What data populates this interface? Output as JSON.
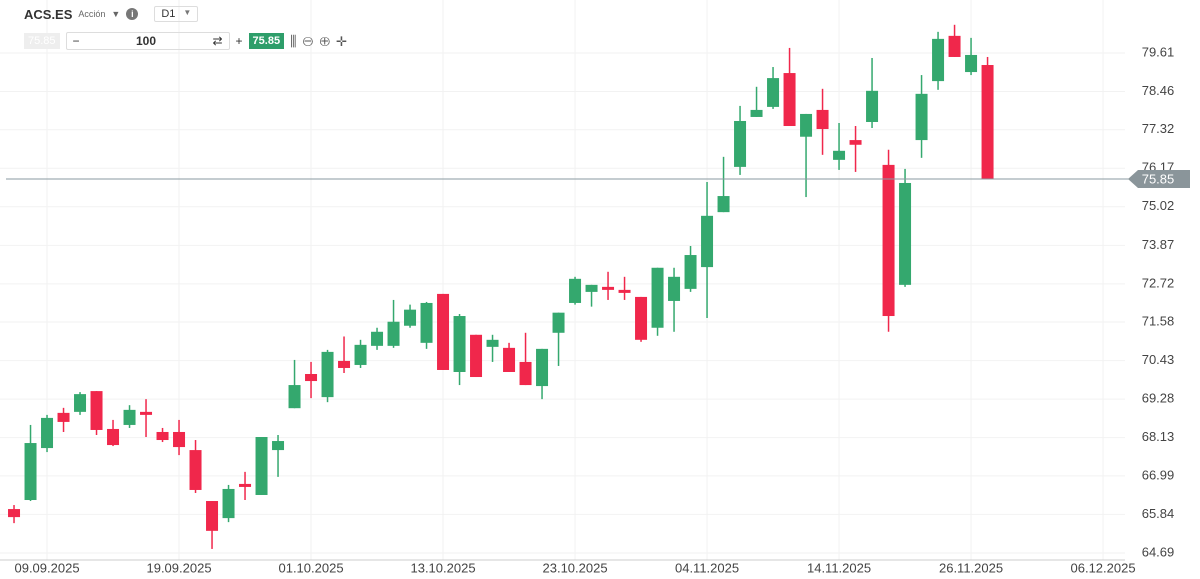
{
  "toolbar": {
    "symbol": "ACS.ES",
    "asset_type": "Acción",
    "timeframe": "D1",
    "quantity": "100"
  },
  "chart_data": {
    "type": "candlestick",
    "up_color": "#34a86e",
    "down_color": "#f0274b",
    "open": [
      66.0,
      66.27,
      67.82,
      68.87,
      68.9,
      69.52,
      68.39,
      68.51,
      68.9,
      68.3,
      68.3,
      67.76,
      66.24,
      65.73,
      66.75,
      66.42,
      67.76,
      69.01,
      70.03,
      69.34,
      70.42,
      70.3,
      70.87,
      70.87,
      71.47,
      70.96,
      72.42,
      70.09,
      71.2,
      70.84,
      70.81,
      70.39,
      69.67,
      71.26,
      72.15,
      72.48,
      72.63,
      72.54,
      72.33,
      71.41,
      72.21,
      72.57,
      73.22,
      74.86,
      76.21,
      77.7,
      78.0,
      79.01,
      77.11,
      77.91,
      76.42,
      77.01,
      77.55,
      76.27,
      72.69,
      77.01,
      78.77,
      80.12,
      79.04,
      79.25
    ],
    "high": [
      66.12,
      68.51,
      68.81,
      69.02,
      69.49,
      69.52,
      68.66,
      69.1,
      69.28,
      68.42,
      68.66,
      68.06,
      66.24,
      66.72,
      67.11,
      68.15,
      68.21,
      70.45,
      70.39,
      70.75,
      71.15,
      71.05,
      71.41,
      72.24,
      72.1,
      72.18,
      72.42,
      71.82,
      71.2,
      71.2,
      70.96,
      71.26,
      70.78,
      71.86,
      72.93,
      72.69,
      73.08,
      72.93,
      72.33,
      73.2,
      73.2,
      73.85,
      75.76,
      76.51,
      78.03,
      78.6,
      79.19,
      79.76,
      77.79,
      78.54,
      77.52,
      77.43,
      79.46,
      76.72,
      76.15,
      78.95,
      80.24,
      80.45,
      80.06,
      79.49
    ],
    "low": [
      65.58,
      66.24,
      67.7,
      68.3,
      68.81,
      68.21,
      67.88,
      68.42,
      68.15,
      68.0,
      67.61,
      66.48,
      64.81,
      65.61,
      66.27,
      66.42,
      66.96,
      69.01,
      69.31,
      69.19,
      70.06,
      70.21,
      70.75,
      70.81,
      71.41,
      70.78,
      70.15,
      69.7,
      69.94,
      70.39,
      70.09,
      69.7,
      69.28,
      70.27,
      72.1,
      72.04,
      72.24,
      72.24,
      70.99,
      71.17,
      71.29,
      72.48,
      71.7,
      74.86,
      75.97,
      77.7,
      77.94,
      77.43,
      75.31,
      76.57,
      76.12,
      76.06,
      77.37,
      71.29,
      72.63,
      76.48,
      78.51,
      79.49,
      78.95,
      75.85
    ],
    "close": [
      65.76,
      67.97,
      68.72,
      68.6,
      69.43,
      68.36,
      67.91,
      68.96,
      68.81,
      68.06,
      67.85,
      66.57,
      65.35,
      66.6,
      66.66,
      68.15,
      68.03,
      69.7,
      69.82,
      70.69,
      70.21,
      70.9,
      71.29,
      71.59,
      71.95,
      72.15,
      70.15,
      71.76,
      69.94,
      71.05,
      70.09,
      69.7,
      70.78,
      71.86,
      72.87,
      72.69,
      72.54,
      72.45,
      71.05,
      73.2,
      72.93,
      73.58,
      74.75,
      75.34,
      77.58,
      77.91,
      78.86,
      77.43,
      77.79,
      77.34,
      76.69,
      76.87,
      78.48,
      71.76,
      75.73,
      78.39,
      80.03,
      79.49,
      79.55,
      75.85
    ],
    "current_price": 75.85,
    "xlim": [
      -0.85,
      67.33
    ],
    "xticks": [
      {
        "value": 2,
        "label": "09.09.2025"
      },
      {
        "value": 10,
        "label": "19.09.2025"
      },
      {
        "value": 18,
        "label": "01.10.2025"
      },
      {
        "value": 26,
        "label": "13.10.2025"
      },
      {
        "value": 34,
        "label": "23.10.2025"
      },
      {
        "value": 42,
        "label": "04.11.2025"
      },
      {
        "value": 50,
        "label": "14.11.2025"
      },
      {
        "value": 58,
        "label": "26.11.2025"
      },
      {
        "value": 66,
        "label": "06.12.2025"
      }
    ],
    "ylim": [
      64.48,
      81.19
    ],
    "yticks": [
      64.69,
      65.84,
      66.99,
      68.13,
      69.28,
      70.43,
      71.58,
      72.72,
      73.87,
      75.02,
      76.17,
      77.32,
      78.46,
      79.61
    ],
    "grid": true
  }
}
